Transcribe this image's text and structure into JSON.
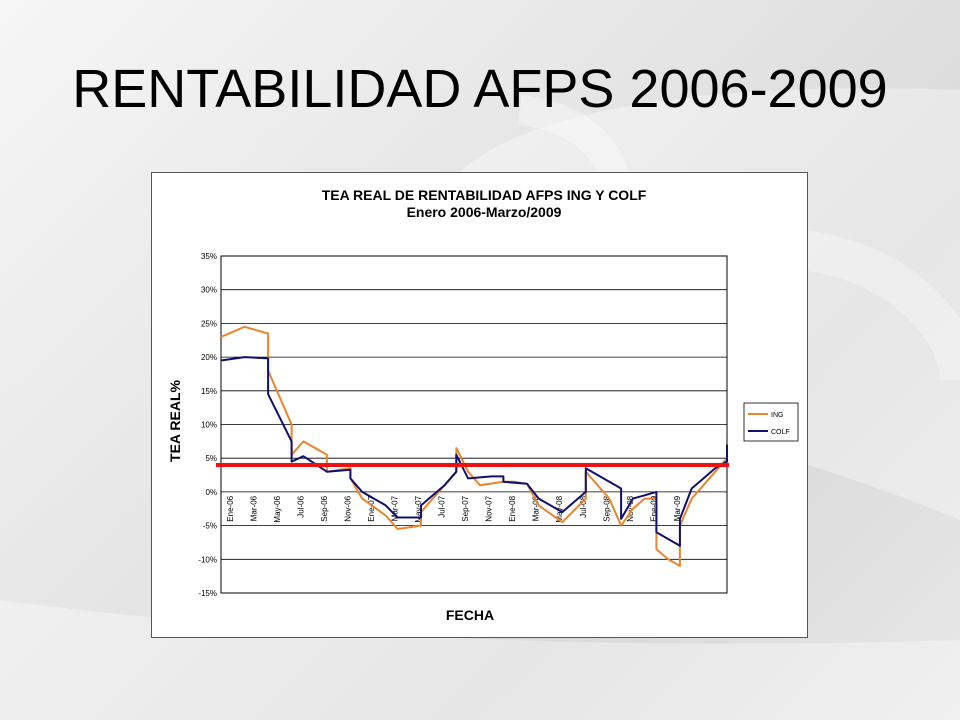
{
  "slide": {
    "title": "RENTABILIDAD AFPS 2006-2009"
  },
  "colors": {
    "ing": "#e8862b",
    "colf": "#10106e",
    "reference": "#ee1111"
  },
  "chart_data": {
    "type": "line",
    "title": "TEA REAL DE RENTABILIDAD AFPS ING Y COLF",
    "subtitle": "Enero 2006-Marzo/2009",
    "xlabel": "FECHA",
    "ylabel": "TEA REAL%",
    "ylim": [
      -15,
      35
    ],
    "ytick_step": 5,
    "ytick_labels": [
      "35%",
      "30%",
      "25%",
      "20%",
      "15%",
      "10%",
      "5%",
      "0%",
      "-5%",
      "-10%",
      "-15%"
    ],
    "grid": true,
    "legend_position": "right",
    "x_labels": [
      "Ene-06",
      "Mar-06",
      "May-06",
      "Jul-06",
      "Sep-06",
      "Nov-06",
      "Ene-07",
      "Mar-07",
      "May-07",
      "Jul-07",
      "Sep-07",
      "Nov-07",
      "Ene-08",
      "Mar-08",
      "May-08",
      "Jul-08",
      "Sep-08",
      "Nov-08",
      "Ene-09",
      "Mar-09"
    ],
    "reference_line": {
      "value": 4
    },
    "series": [
      {
        "name": "ING",
        "color": "#e8862b",
        "points": [
          [
            0,
            23
          ],
          [
            2,
            24.5
          ],
          [
            4,
            23.5
          ],
          [
            4,
            18
          ],
          [
            6,
            10
          ],
          [
            6,
            5.5
          ],
          [
            7,
            7.5
          ],
          [
            9,
            5.5
          ],
          [
            9,
            3
          ],
          [
            11,
            3.5
          ],
          [
            11,
            2
          ],
          [
            12,
            -1
          ],
          [
            14,
            -3.5
          ],
          [
            15,
            -5.5
          ],
          [
            17,
            -5
          ],
          [
            17,
            -3
          ],
          [
            20,
            3
          ],
          [
            20,
            6.5
          ],
          [
            21,
            3
          ],
          [
            22,
            1
          ],
          [
            24,
            1.5
          ],
          [
            25,
            1.5
          ],
          [
            26,
            1.2
          ],
          [
            27,
            -2
          ],
          [
            29,
            -4.5
          ],
          [
            31,
            -1
          ],
          [
            31,
            3
          ],
          [
            33,
            -1
          ],
          [
            34,
            -5
          ],
          [
            35,
            -2.5
          ],
          [
            36,
            -1
          ],
          [
            37,
            -1
          ],
          [
            37,
            -8.5
          ],
          [
            38,
            -10
          ],
          [
            39,
            -11
          ],
          [
            39,
            -5
          ],
          [
            40,
            -1
          ],
          [
            41,
            1
          ],
          [
            42,
            3
          ],
          [
            43,
            5
          ]
        ]
      },
      {
        "name": "COLF",
        "color": "#10106e",
        "points": [
          [
            0,
            19.5
          ],
          [
            2,
            20
          ],
          [
            4,
            19.8
          ],
          [
            4,
            14.5
          ],
          [
            6,
            7.5
          ],
          [
            6,
            4.5
          ],
          [
            7,
            5.3
          ],
          [
            9,
            3
          ],
          [
            11,
            3.3
          ],
          [
            11,
            2
          ],
          [
            12,
            0
          ],
          [
            14,
            -2
          ],
          [
            15,
            -3.8
          ],
          [
            17,
            -3.8
          ],
          [
            17,
            -2
          ],
          [
            19,
            1
          ],
          [
            20,
            3
          ],
          [
            20,
            5.5
          ],
          [
            21,
            2
          ],
          [
            23,
            2.3
          ],
          [
            24,
            2.3
          ],
          [
            24,
            1.5
          ],
          [
            26,
            1.2
          ],
          [
            27,
            -1
          ],
          [
            29,
            -3
          ],
          [
            30,
            -1.5
          ],
          [
            31,
            0
          ],
          [
            31,
            3.5
          ],
          [
            34,
            0.5
          ],
          [
            34,
            -4
          ],
          [
            35,
            -1
          ],
          [
            36,
            -0.5
          ],
          [
            37,
            0
          ],
          [
            37,
            -6
          ],
          [
            39,
            -8
          ],
          [
            39,
            -4
          ],
          [
            40,
            0.5
          ],
          [
            41,
            2
          ],
          [
            42,
            3.5
          ],
          [
            43,
            4.5
          ],
          [
            43,
            7
          ]
        ]
      }
    ]
  }
}
